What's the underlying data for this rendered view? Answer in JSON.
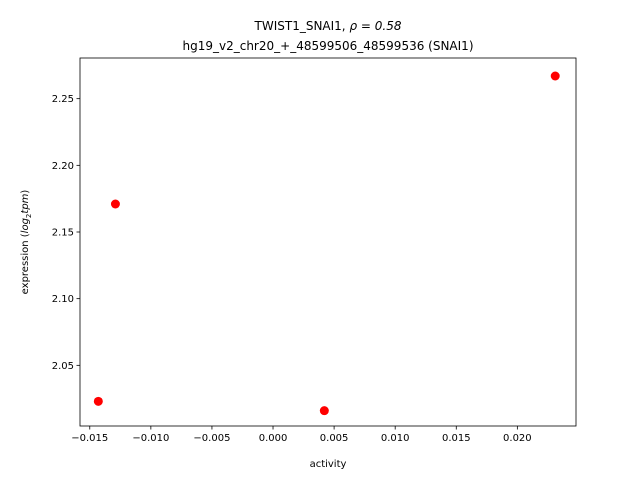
{
  "chart_data": {
    "type": "scatter",
    "title_line1_text": "TWIST1_SNAI1, ",
    "title_line1_rho": "ρ = 0.58",
    "title_line2": "hg19_v2_chr20_+_48599506_48599536 (SNAI1)",
    "xlabel": "activity",
    "ylabel_prefix": "expression (",
    "ylabel_log": "log",
    "ylabel_sub": "2",
    "ylabel_tpm": "tpm",
    "ylabel_suffix": ")",
    "xlim": [
      -0.0158,
      0.0248
    ],
    "ylim": [
      2.0045,
      2.2805
    ],
    "x_ticks": [
      -0.015,
      -0.01,
      -0.005,
      0.0,
      0.005,
      0.01,
      0.015,
      0.02
    ],
    "x_tick_labels": [
      "−0.015",
      "−0.010",
      "−0.005",
      "0.000",
      "0.005",
      "0.010",
      "0.015",
      "0.020"
    ],
    "y_ticks": [
      2.05,
      2.1,
      2.15,
      2.2,
      2.25
    ],
    "y_tick_labels": [
      "2.05",
      "2.10",
      "2.15",
      "2.20",
      "2.25"
    ],
    "points": [
      {
        "x": -0.0143,
        "y": 2.023
      },
      {
        "x": -0.0129,
        "y": 2.171
      },
      {
        "x": 0.0042,
        "y": 2.016
      },
      {
        "x": 0.0231,
        "y": 2.267
      }
    ],
    "point_color": "#ff0000",
    "grid": false,
    "legend": "none"
  }
}
